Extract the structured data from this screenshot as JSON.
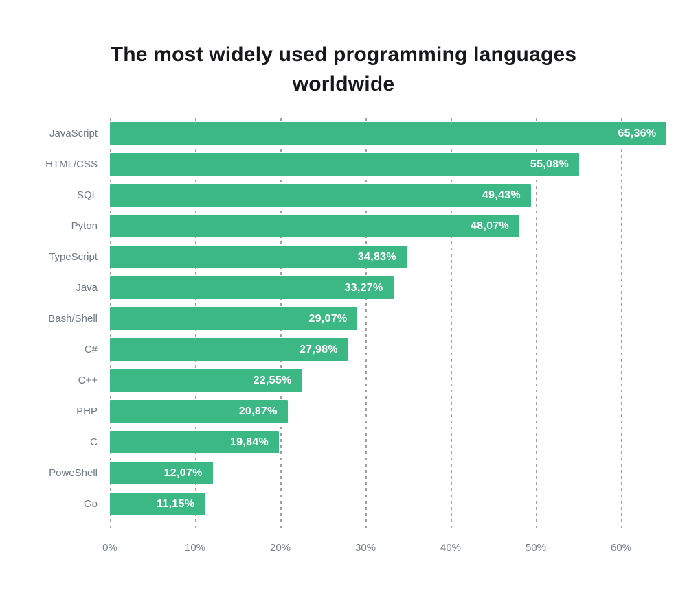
{
  "title_lines": [
    "The most widely used programming languages",
    "worldwide"
  ],
  "chart_data": {
    "type": "bar",
    "orientation": "horizontal",
    "title": "The most widely used programming languages worldwide",
    "xlabel": "",
    "ylabel": "",
    "categories": [
      "JavaScript",
      "HTML/CSS",
      "SQL",
      "Pyton",
      "TypeScript",
      "Java",
      "Bash/Shell",
      "C#",
      "C++",
      "PHP",
      "C",
      "PoweShell",
      "Go"
    ],
    "values": [
      65.36,
      55.08,
      49.43,
      48.07,
      34.83,
      33.27,
      29.07,
      27.98,
      22.55,
      20.87,
      19.84,
      12.07,
      11.15
    ],
    "value_labels": [
      "65,36%",
      "55,08%",
      "49,43%",
      "48,07%",
      "34,83%",
      "33,27%",
      "29,07%",
      "27,98%",
      "22,55%",
      "20,87%",
      "19,84%",
      "12,07%",
      "11,15%"
    ],
    "x_ticks": [
      "0%",
      "10%",
      "20%",
      "30%",
      "40%",
      "50%",
      "60%"
    ],
    "x_tick_values": [
      0,
      10,
      20,
      30,
      40,
      50,
      60
    ],
    "xlim": [
      0,
      66
    ],
    "grid": "vertical-dashed",
    "legend": "none",
    "colors": {
      "bar": "#3cb885",
      "value_label": "#ffffff",
      "category_label": "#6f7885",
      "axis_label": "#77808b",
      "gridline": "#9ca1a8",
      "title": "#17181c",
      "background": "#ffffff"
    }
  }
}
